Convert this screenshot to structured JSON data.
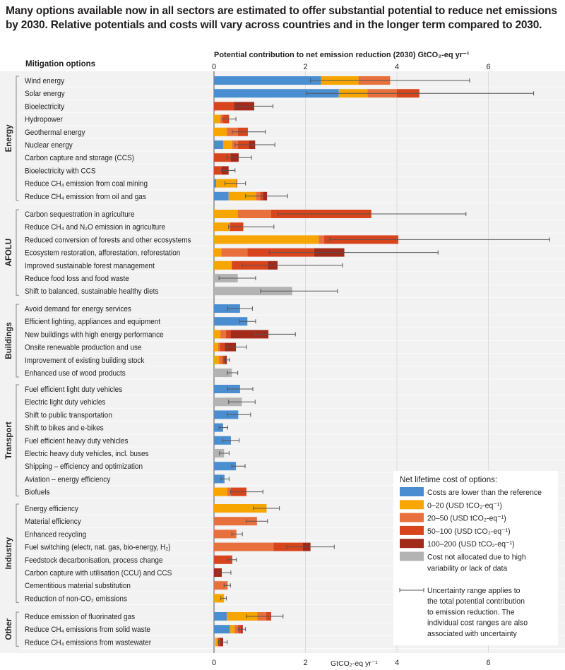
{
  "title": "Many options available now in all sectors are estimated to offer substantial potential to reduce net emissions by 2030. Relative potentials and costs will vary across countries and in the longer term compared to 2030.",
  "chart_data": {
    "type": "bar",
    "orientation": "horizontal-stacked",
    "ylabel": "Mitigation options",
    "xlabel_top": "Potential contribution to net emission reduction (2030) GtCO₂-eq yr⁻¹",
    "xlabel_bottom": "GtCO₂-eq yr⁻¹",
    "xlim": [
      0,
      7.5
    ],
    "xticks_top": [
      0,
      2,
      4,
      6
    ],
    "xticks_bottom": [
      0,
      2,
      4,
      6
    ],
    "grid": true,
    "legend_position": "bottom-right",
    "colors": {
      "lower": "#4a8ed1",
      "0-20": "#f7a600",
      "20-50": "#e8703c",
      "50-100": "#d8441c",
      "100-200": "#a22a1b",
      "na": "#b3b3b3"
    },
    "legend": {
      "title": "Net lifetime cost of options:",
      "entries": [
        {
          "key": "lower",
          "label": "Costs are lower than the reference"
        },
        {
          "key": "0-20",
          "label": "0–20 (USD tCO₂-eq⁻¹)"
        },
        {
          "key": "20-50",
          "label": "20–50 (USD tCO₂-eq⁻¹)"
        },
        {
          "key": "50-100",
          "label": "50–100 (USD tCO₂-eq⁻¹)"
        },
        {
          "key": "100-200",
          "label": "100–200 (USD tCO₂-eq⁻¹)"
        },
        {
          "key": "na",
          "label": "Cost not allocated due to high",
          "label2": "variability or lack of data"
        }
      ],
      "uncertainty_lines": [
        "Uncertainty range applies to",
        "the total potential contribution",
        "to emission reduction. The",
        "individual cost ranges are also",
        "associated with uncertainty"
      ]
    },
    "groups": [
      {
        "name": "Energy",
        "options": [
          {
            "label": "Wind energy",
            "segments": [
              [
                "lower",
                2.34
              ],
              [
                "0-20",
                3.16
              ],
              [
                "20-50",
                3.85
              ]
            ],
            "range": [
              2.11,
              5.59
            ]
          },
          {
            "label": "Solar energy",
            "segments": [
              [
                "lower",
                2.73
              ],
              [
                "0-20",
                3.36
              ],
              [
                "20-50",
                4.0
              ],
              [
                "50-100",
                4.49
              ]
            ],
            "range": [
              2.02,
              6.99
            ]
          },
          {
            "label": "Bioelectricity",
            "segments": [
              [
                "50-100",
                0.44
              ],
              [
                "100-200",
                0.88
              ]
            ],
            "range": [
              0.46,
              1.29
            ]
          },
          {
            "label": "Hydropower",
            "segments": [
              [
                "0-20",
                0.14
              ],
              [
                "20-50",
                0.2
              ],
              [
                "50-100",
                0.33
              ]
            ],
            "range": [
              0.18,
              0.48
            ]
          },
          {
            "label": "Geothermal energy",
            "segments": [
              [
                "0-20",
                0.28
              ],
              [
                "20-50",
                0.52
              ],
              [
                "50-100",
                0.74
              ]
            ],
            "range": [
              0.4,
              1.12
            ]
          },
          {
            "label": "Nuclear energy",
            "segments": [
              [
                "lower",
                0.2
              ],
              [
                "0-20",
                0.4
              ],
              [
                "20-50",
                0.52
              ],
              [
                "50-100",
                0.76
              ],
              [
                "100-200",
                0.9
              ]
            ],
            "range": [
              0.46,
              1.33
            ]
          },
          {
            "label": "Carbon capture and storage (CCS)",
            "segments": [
              [
                "50-100",
                0.36
              ],
              [
                "100-200",
                0.54
              ]
            ],
            "range": [
              0.28,
              0.82
            ]
          },
          {
            "label": "Bioelectricity with CCS",
            "segments": [
              [
                "50-100",
                0.17
              ],
              [
                "100-200",
                0.32
              ]
            ],
            "range": [
              0.16,
              0.46
            ]
          },
          {
            "label": "Reduce CH₄ emission from coal mining",
            "segments": [
              [
                "lower",
                0.05
              ],
              [
                "0-20",
                0.48
              ],
              [
                "20-50",
                0.51
              ]
            ],
            "range": [
              0.24,
              0.69
            ]
          },
          {
            "label": "Reduce CH₄ emission from oil and gas",
            "segments": [
              [
                "lower",
                0.32
              ],
              [
                "0-20",
                0.92
              ],
              [
                "20-50",
                1.01
              ],
              [
                "50-100",
                1.07
              ],
              [
                "100-200",
                1.16
              ]
            ],
            "range": [
              0.69,
              1.61
            ]
          }
        ]
      },
      {
        "name": "AFOLU",
        "options": [
          {
            "label": "Carbon sequestration in agriculture",
            "segments": [
              [
                "0-20",
                0.52
              ],
              [
                "20-50",
                1.25
              ],
              [
                "50-100",
                3.44
              ]
            ],
            "range": [
              1.4,
              5.51
            ]
          },
          {
            "label": "Reduce CH₄ and N₂O emission in agriculture",
            "segments": [
              [
                "0-20",
                0.35
              ],
              [
                "50-100",
                0.64
              ]
            ],
            "range": [
              0.32,
              1.31
            ]
          },
          {
            "label": "Reduced conversion of forests and other ecosystems",
            "segments": [
              [
                "0-20",
                2.29
              ],
              [
                "20-50",
                2.41
              ],
              [
                "50-100",
                4.03
              ]
            ],
            "range": [
              2.53,
              7.34
            ]
          },
          {
            "label": "Ecosystem restoration, afforestation, reforestation",
            "segments": [
              [
                "0-20",
                0.16
              ],
              [
                "20-50",
                0.73
              ],
              [
                "50-100",
                2.19
              ],
              [
                "100-200",
                2.85
              ]
            ],
            "range": [
              1.21,
              4.9
            ]
          },
          {
            "label": "Improved sustainable forest management",
            "segments": [
              [
                "0-20",
                0.39
              ],
              [
                "50-100",
                1.17
              ],
              [
                "100-200",
                1.39
              ]
            ],
            "range": [
              0.62,
              2.81
            ]
          },
          {
            "label": "Reduce food loss and food waste",
            "segments": [
              [
                "na",
                0.52
              ]
            ],
            "range": [
              0.11,
              0.91
            ]
          },
          {
            "label": "Shift to balanced, sustainable healthy diets",
            "segments": [
              [
                "na",
                1.71
              ]
            ],
            "range": [
              1.02,
              2.7
            ]
          }
        ]
      },
      {
        "name": "Buildings",
        "options": [
          {
            "label": "Avoid demand for energy services",
            "segments": [
              [
                "lower",
                0.57
              ]
            ],
            "range": [
              0.3,
              0.84
            ]
          },
          {
            "label": "Efficient lighting, appliances and equipment",
            "segments": [
              [
                "lower",
                0.73
              ]
            ],
            "range": [
              0.56,
              0.91
            ]
          },
          {
            "label": "New buildings with high energy performance",
            "segments": [
              [
                "0-20",
                0.14
              ],
              [
                "20-50",
                0.26
              ],
              [
                "50-100",
                0.36
              ],
              [
                "100-200",
                1.19
              ]
            ],
            "range": [
              0.9,
              1.78
            ]
          },
          {
            "label": "Onsite renewable production and use",
            "segments": [
              [
                "0-20",
                0.09
              ],
              [
                "20-50",
                0.13
              ],
              [
                "50-100",
                0.24
              ],
              [
                "100-200",
                0.48
              ]
            ],
            "range": [
              0.28,
              0.71
            ]
          },
          {
            "label": "Improvement of existing building stock",
            "segments": [
              [
                "0-20",
                0.11
              ],
              [
                "20-50",
                0.18
              ],
              [
                "50-100",
                0.23
              ],
              [
                "100-200",
                0.28
              ]
            ],
            "range": [
              0.22,
              0.34
            ]
          },
          {
            "label": "Enhanced use of wood products",
            "segments": [
              [
                "na",
                0.39
              ]
            ],
            "range": [
              0.29,
              0.52
            ]
          }
        ]
      },
      {
        "name": "Transport",
        "options": [
          {
            "label": "Fuel efficient light duty vehicles",
            "segments": [
              [
                "lower",
                0.57
              ]
            ],
            "range": [
              0.3,
              0.85
            ]
          },
          {
            "label": "Electric light duty vehicles",
            "segments": [
              [
                "na",
                0.61
              ]
            ],
            "range": [
              0.32,
              0.9
            ]
          },
          {
            "label": "Shift to public transportation",
            "segments": [
              [
                "lower",
                0.53
              ]
            ],
            "range": [
              0.29,
              0.8
            ]
          },
          {
            "label": "Shift to bikes and e-bikes",
            "segments": [
              [
                "lower",
                0.2
              ]
            ],
            "range": [
              0.11,
              0.3
            ]
          },
          {
            "label": "Fuel efficient heavy duty vehicles",
            "segments": [
              [
                "lower",
                0.37
              ]
            ],
            "range": [
              0.19,
              0.55
            ]
          },
          {
            "label": "Electric heavy duty vehicles, incl. buses",
            "segments": [
              [
                "na",
                0.22
              ]
            ],
            "range": [
              0.12,
              0.33
            ]
          },
          {
            "label": "Shipping – efficiency and optimization",
            "segments": [
              [
                "lower",
                0.48
              ]
            ],
            "range": [
              0.39,
              0.68
            ]
          },
          {
            "label": "Aviation – energy efficiency",
            "segments": [
              [
                "lower",
                0.23
              ]
            ],
            "range": [
              0.15,
              0.33
            ]
          },
          {
            "label": "Biofuels",
            "segments": [
              [
                "0-20",
                0.29
              ],
              [
                "20-50",
                0.37
              ],
              [
                "50-100",
                0.71
              ]
            ],
            "range": [
              0.36,
              1.07
            ]
          }
        ]
      },
      {
        "name": "Industry",
        "options": [
          {
            "label": "Energy efficiency",
            "segments": [
              [
                "0-20",
                1.15
              ]
            ],
            "range": [
              0.86,
              1.43
            ]
          },
          {
            "label": "Material efficiency",
            "segments": [
              [
                "20-50",
                0.94
              ]
            ],
            "range": [
              0.71,
              1.17
            ]
          },
          {
            "label": "Enhanced recycling",
            "segments": [
              [
                "20-50",
                0.49
              ]
            ],
            "range": [
              0.39,
              0.62
            ]
          },
          {
            "label": "Fuel switching (electr, nat. gas, bio-energy, H₂)",
            "segments": [
              [
                "20-50",
                1.3
              ],
              [
                "50-100",
                1.94
              ],
              [
                "100-200",
                2.11
              ]
            ],
            "range": [
              1.59,
              2.63
            ]
          },
          {
            "label": "Feedstock decarbonisation, process change",
            "segments": [
              [
                "50-100",
                0.4
              ]
            ],
            "range": [
              0.3,
              0.49
            ]
          },
          {
            "label": "Carbon capture with utilisation (CCU) and CCS",
            "segments": [
              [
                "100-200",
                0.17
              ]
            ],
            "range": [
              0.08,
              0.37
            ]
          },
          {
            "label": "Cementitious material substitution",
            "segments": [
              [
                "20-50",
                0.3
              ]
            ],
            "range": [
              0.22,
              0.36
            ]
          },
          {
            "label": "Reduction of non-CO₂ emissions",
            "segments": [
              [
                "0-20",
                0.22
              ]
            ],
            "range": [
              0.15,
              0.27
            ]
          }
        ]
      },
      {
        "name": "Other",
        "options": [
          {
            "label": "Reduce emission of fluorinated gas",
            "segments": [
              [
                "lower",
                0.28
              ],
              [
                "0-20",
                0.95
              ],
              [
                "20-50",
                1.14
              ],
              [
                "50-100",
                1.25
              ]
            ],
            "range": [
              0.71,
              1.51
            ]
          },
          {
            "label": "Reduce CH₄ emissions from solid waste",
            "segments": [
              [
                "lower",
                0.35
              ],
              [
                "0-20",
                0.45
              ],
              [
                "20-50",
                0.53
              ],
              [
                "50-100",
                0.59
              ],
              [
                "100-200",
                0.63
              ]
            ],
            "range": [
              0.53,
              0.69
            ]
          },
          {
            "label": "Reduce CH₄ emissions from wastewater",
            "segments": [
              [
                "na",
                0.04
              ],
              [
                "0-20",
                0.07
              ],
              [
                "20-50",
                0.09
              ],
              [
                "50-100",
                0.13
              ],
              [
                "100-200",
                0.2
              ]
            ],
            "range": [
              0.1,
              0.29
            ]
          }
        ]
      }
    ]
  }
}
